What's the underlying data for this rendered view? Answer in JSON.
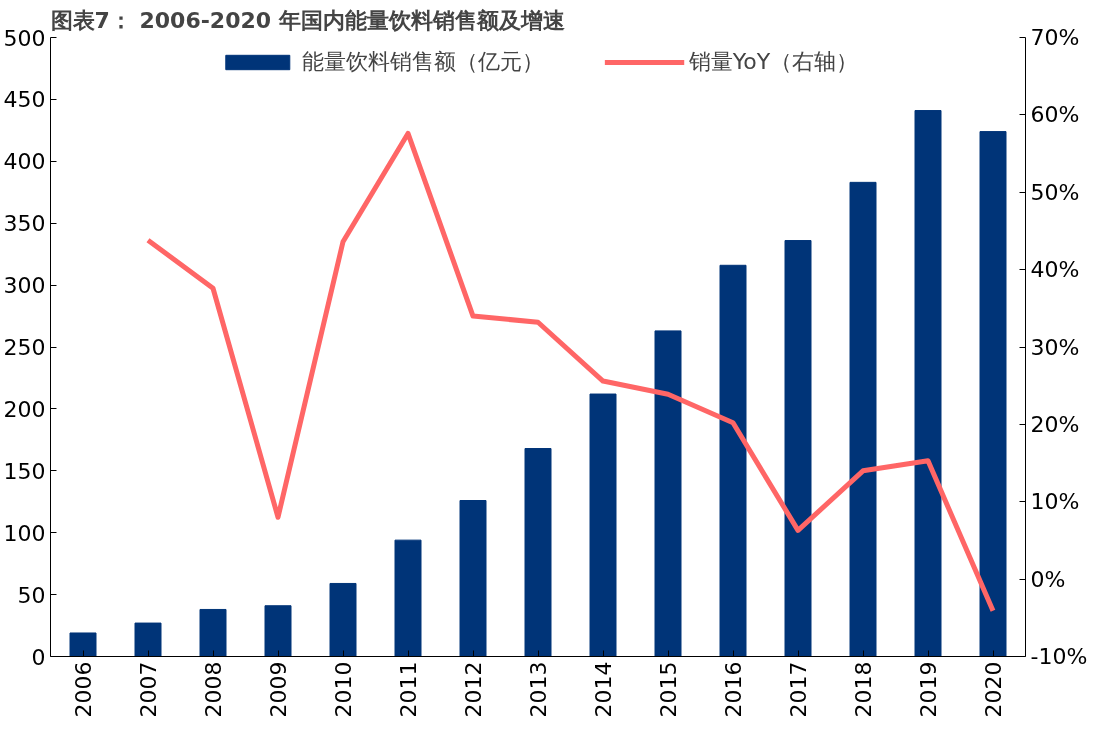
{
  "chart_data": {
    "type": "bar",
    "title": "图表7：  2006-2020 年国内能量饮料销售额及增速",
    "categories": [
      "2006",
      "2007",
      "2008",
      "2009",
      "2010",
      "2011",
      "2012",
      "2013",
      "2014",
      "2015",
      "2016",
      "2017",
      "2018",
      "2019",
      "2020"
    ],
    "series": [
      {
        "name": "能量饮料销售额（亿元）",
        "color": "#003478",
        "values": [
          19,
          27,
          38,
          41,
          59,
          94,
          126,
          168,
          212,
          263,
          316,
          336,
          383,
          441,
          424
        ]
      },
      {
        "name": "销量YoY（右轴）",
        "type": "line",
        "axis": "y2",
        "color": "#ff6666",
        "values": [
          null,
          43.8,
          37.6,
          8.0,
          43.6,
          57.6,
          34.0,
          33.2,
          25.6,
          23.9,
          20.2,
          6.3,
          14.0,
          15.3,
          -4.1
        ]
      }
    ],
    "ylim": [
      0,
      500
    ],
    "yticks": [
      0,
      50,
      100,
      150,
      200,
      250,
      300,
      350,
      400,
      450,
      500
    ],
    "y2lim": [
      -10,
      70
    ],
    "y2ticks": [
      {
        "value": -10,
        "label": "-10%"
      },
      {
        "value": 0,
        "label": "0%"
      },
      {
        "value": 10,
        "label": "10%"
      },
      {
        "value": 20,
        "label": "20%"
      },
      {
        "value": 30,
        "label": "30%"
      },
      {
        "value": 40,
        "label": "40%"
      },
      {
        "value": 50,
        "label": "50%"
      },
      {
        "value": 60,
        "label": "60%"
      },
      {
        "value": 70,
        "label": "70%"
      }
    ],
    "legend": "top",
    "grid": false,
    "line_style": "solid"
  }
}
